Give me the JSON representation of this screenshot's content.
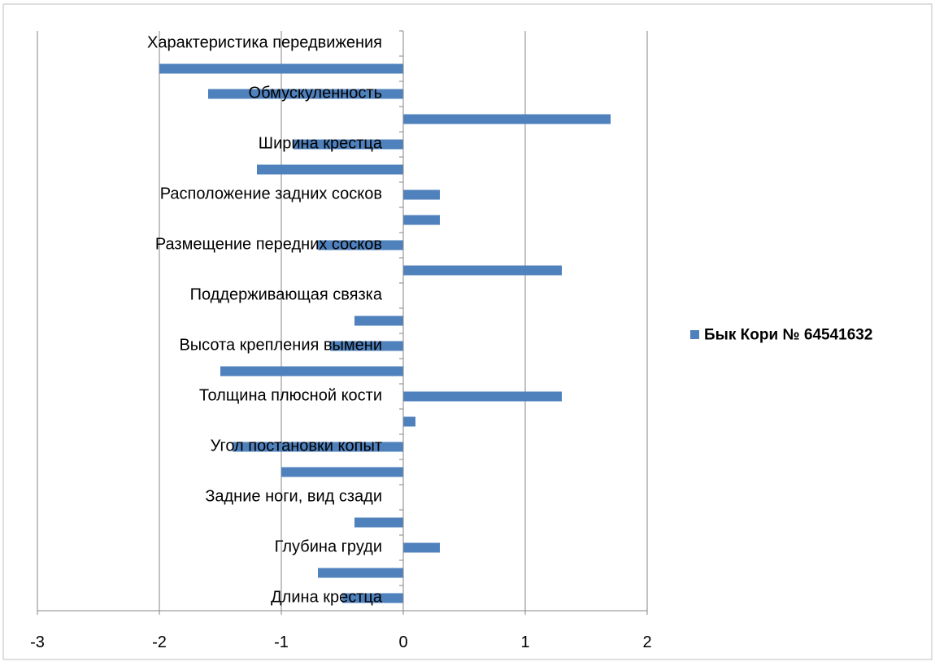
{
  "chart_data": {
    "type": "bar",
    "orientation": "horizontal",
    "title": "",
    "xlabel": "",
    "ylabel": "",
    "xlim": [
      -3,
      2
    ],
    "x_ticks": [
      -3,
      -2,
      -1,
      0,
      1,
      2
    ],
    "grid": "vertical",
    "legend_position": "right",
    "series": [
      {
        "name": "Бык Кори № 64541632",
        "color": "#4f81bd",
        "values": [
          -0.5,
          -0.7,
          0.3,
          -0.4,
          0,
          -1.0,
          -1.4,
          0.1,
          1.3,
          -1.5,
          -0.6,
          -0.4,
          0,
          1.3,
          -0.7,
          0.3,
          0.3,
          -1.2,
          -0.9,
          1.7,
          -1.6,
          -2.0,
          0
        ]
      }
    ],
    "categories": [
      "Длина крестца",
      "",
      "Глубина груди",
      "",
      "Задние ноги, вид сзади",
      "",
      "Угол постановки копыт",
      "",
      "Толщина плюсной кости",
      "",
      "Высота крепления вымени",
      "",
      "Поддерживающая связка",
      "",
      "Размещение передних сосков",
      "",
      "Расположение задних сосков",
      "",
      "Ширина крестца",
      "",
      "Обмускуленность",
      "",
      "Характеристика передвижения"
    ]
  }
}
